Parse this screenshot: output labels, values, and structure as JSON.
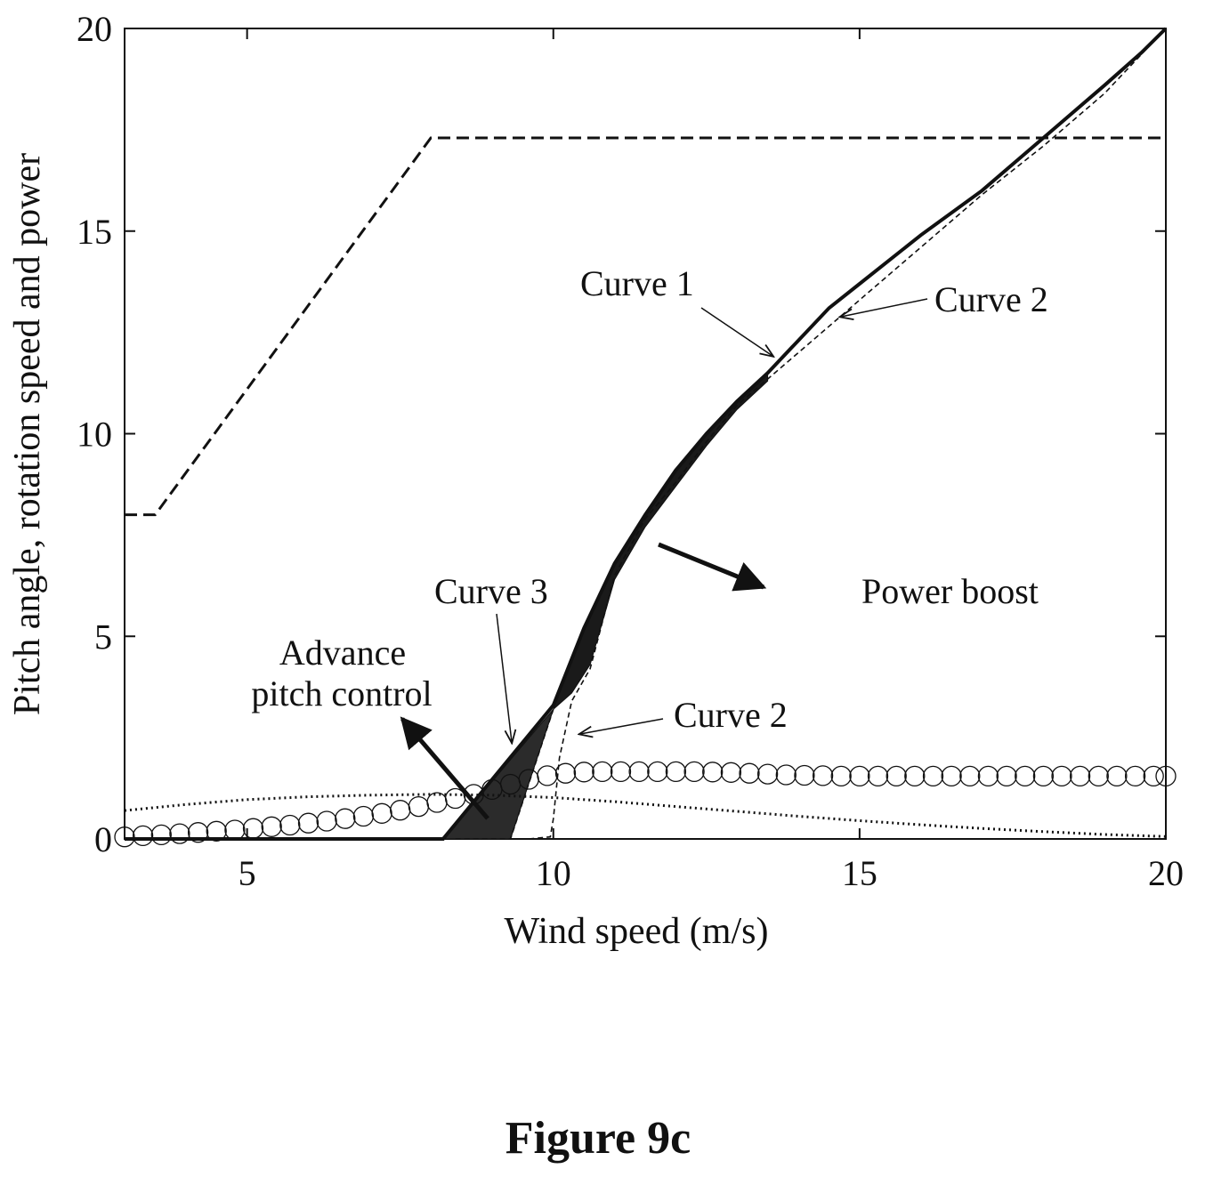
{
  "colors": {
    "ink": "#111111",
    "fill_dark": "#1a1a1a",
    "fill_mid": "#2b2b2b",
    "paper": "#ffffff"
  },
  "caption": "Figure 9c",
  "chart_data": {
    "type": "line",
    "xlabel": "Wind speed (m/s)",
    "ylabel": "Pitch angle, rotation speed and power",
    "xlim": [
      3,
      20
    ],
    "ylim": [
      0,
      20
    ],
    "xticks": [
      5,
      10,
      15,
      20
    ],
    "yticks": [
      0,
      5,
      10,
      15,
      20
    ],
    "grid": false,
    "legend": "none",
    "series": [
      {
        "style": "dashed",
        "points": [
          [
            3,
            8
          ],
          [
            3.5,
            8
          ],
          [
            8,
            17.3
          ],
          [
            20,
            17.3
          ]
        ]
      },
      {
        "style": "dotted",
        "points": [
          [
            3,
            0.7
          ],
          [
            4,
            0.85
          ],
          [
            5,
            0.97
          ],
          [
            6,
            1.04
          ],
          [
            7,
            1.08
          ],
          [
            8,
            1.1
          ],
          [
            9,
            1.08
          ],
          [
            10,
            1.02
          ],
          [
            11,
            0.92
          ],
          [
            12,
            0.8
          ],
          [
            13,
            0.68
          ],
          [
            14,
            0.56
          ],
          [
            15,
            0.45
          ],
          [
            16,
            0.35
          ],
          [
            17,
            0.26
          ],
          [
            18,
            0.18
          ],
          [
            19,
            0.11
          ],
          [
            20,
            0.06
          ]
        ]
      },
      {
        "style": "circles",
        "points": [
          [
            3,
            0.05
          ],
          [
            3.3,
            0.08
          ],
          [
            3.6,
            0.1
          ],
          [
            3.9,
            0.13
          ],
          [
            4.2,
            0.16
          ],
          [
            4.5,
            0.19
          ],
          [
            4.8,
            0.22
          ],
          [
            5.1,
            0.26
          ],
          [
            5.4,
            0.3
          ],
          [
            5.7,
            0.34
          ],
          [
            6,
            0.39
          ],
          [
            6.3,
            0.44
          ],
          [
            6.6,
            0.5
          ],
          [
            6.9,
            0.56
          ],
          [
            7.2,
            0.63
          ],
          [
            7.5,
            0.71
          ],
          [
            7.8,
            0.8
          ],
          [
            8.1,
            0.9
          ],
          [
            8.4,
            1.0
          ],
          [
            8.7,
            1.1
          ],
          [
            9,
            1.22
          ],
          [
            9.3,
            1.35
          ],
          [
            9.6,
            1.47
          ],
          [
            9.9,
            1.56
          ],
          [
            10.2,
            1.62
          ],
          [
            10.5,
            1.65
          ],
          [
            10.8,
            1.66
          ],
          [
            11.1,
            1.66
          ],
          [
            11.4,
            1.66
          ],
          [
            11.7,
            1.66
          ],
          [
            12,
            1.66
          ],
          [
            12.3,
            1.66
          ],
          [
            12.6,
            1.65
          ],
          [
            12.9,
            1.64
          ],
          [
            13.2,
            1.62
          ],
          [
            13.5,
            1.6
          ],
          [
            13.8,
            1.58
          ],
          [
            14.1,
            1.57
          ],
          [
            14.4,
            1.56
          ],
          [
            14.7,
            1.55
          ],
          [
            15,
            1.55
          ],
          [
            15.3,
            1.55
          ],
          [
            15.6,
            1.55
          ],
          [
            15.9,
            1.55
          ],
          [
            16.2,
            1.55
          ],
          [
            16.5,
            1.55
          ],
          [
            16.8,
            1.55
          ],
          [
            17.1,
            1.55
          ],
          [
            17.4,
            1.55
          ],
          [
            17.7,
            1.55
          ],
          [
            18,
            1.55
          ],
          [
            18.3,
            1.55
          ],
          [
            18.6,
            1.55
          ],
          [
            18.9,
            1.55
          ],
          [
            19.2,
            1.55
          ],
          [
            19.5,
            1.55
          ],
          [
            19.8,
            1.55
          ],
          [
            20,
            1.55
          ]
        ]
      },
      {
        "style": "solid",
        "points": [
          [
            3,
            0
          ],
          [
            8.2,
            0
          ],
          [
            10,
            3.3
          ],
          [
            10.5,
            5.2
          ],
          [
            11,
            6.8
          ],
          [
            11.5,
            8.0
          ],
          [
            12,
            9.1
          ],
          [
            12.5,
            10.0
          ],
          [
            13,
            10.8
          ],
          [
            13.5,
            11.5
          ],
          [
            14,
            12.3
          ],
          [
            14.5,
            13.1
          ],
          [
            15,
            13.7
          ],
          [
            16,
            14.9
          ],
          [
            17,
            16.0
          ],
          [
            18,
            17.3
          ],
          [
            19,
            18.6
          ],
          [
            19.6,
            19.4
          ],
          [
            20,
            20
          ]
        ]
      },
      {
        "style": "dashed-fine",
        "points": [
          [
            9.6,
            0
          ],
          [
            9.95,
            0.05
          ],
          [
            10,
            0.5
          ],
          [
            10.1,
            2.0
          ],
          [
            10.3,
            3.4
          ],
          [
            10.6,
            4.2
          ],
          [
            11,
            6.5
          ],
          [
            11.5,
            7.9
          ],
          [
            12,
            8.8
          ],
          [
            12.5,
            9.8
          ],
          [
            13,
            10.7
          ],
          [
            14,
            12.0
          ],
          [
            15,
            13.3
          ],
          [
            16,
            14.6
          ],
          [
            17,
            15.9
          ],
          [
            18,
            17.1
          ],
          [
            19,
            18.4
          ],
          [
            20,
            20
          ]
        ]
      },
      {
        "style": "dashed-fine",
        "points": [
          [
            8.4,
            0
          ],
          [
            9.3,
            0
          ],
          [
            10,
            3.2
          ]
        ]
      }
    ],
    "shaded_regions": [
      {
        "label": "Power boost",
        "polygon": [
          [
            10,
            3.2
          ],
          [
            10.5,
            5.2
          ],
          [
            11,
            6.8
          ],
          [
            11.5,
            8.0
          ],
          [
            12,
            9.1
          ],
          [
            12.5,
            10.0
          ],
          [
            13,
            10.8
          ],
          [
            13.5,
            11.5
          ],
          [
            13.5,
            11.3
          ],
          [
            13,
            10.6
          ],
          [
            12.5,
            9.7
          ],
          [
            12,
            8.7
          ],
          [
            11.5,
            7.7
          ],
          [
            11,
            6.4
          ],
          [
            10.6,
            4.3
          ],
          [
            10.3,
            3.6
          ]
        ]
      },
      {
        "label": "Advance pitch control",
        "polygon": [
          [
            8.2,
            0
          ],
          [
            10,
            3.2
          ],
          [
            9.3,
            0
          ]
        ]
      }
    ],
    "annotations": [
      {
        "text": "Curve 1",
        "target": [
          13.6,
          11.7
        ]
      },
      {
        "text": "Curve 2",
        "target": [
          14.7,
          12.6
        ]
      },
      {
        "text": "Curve 3",
        "target": [
          9.3,
          2.4
        ]
      },
      {
        "text": "Curve 2",
        "target": [
          10.3,
          2.6
        ]
      },
      {
        "text": "Power boost"
      },
      {
        "text": "Advance"
      },
      {
        "text": "pitch control"
      }
    ]
  }
}
